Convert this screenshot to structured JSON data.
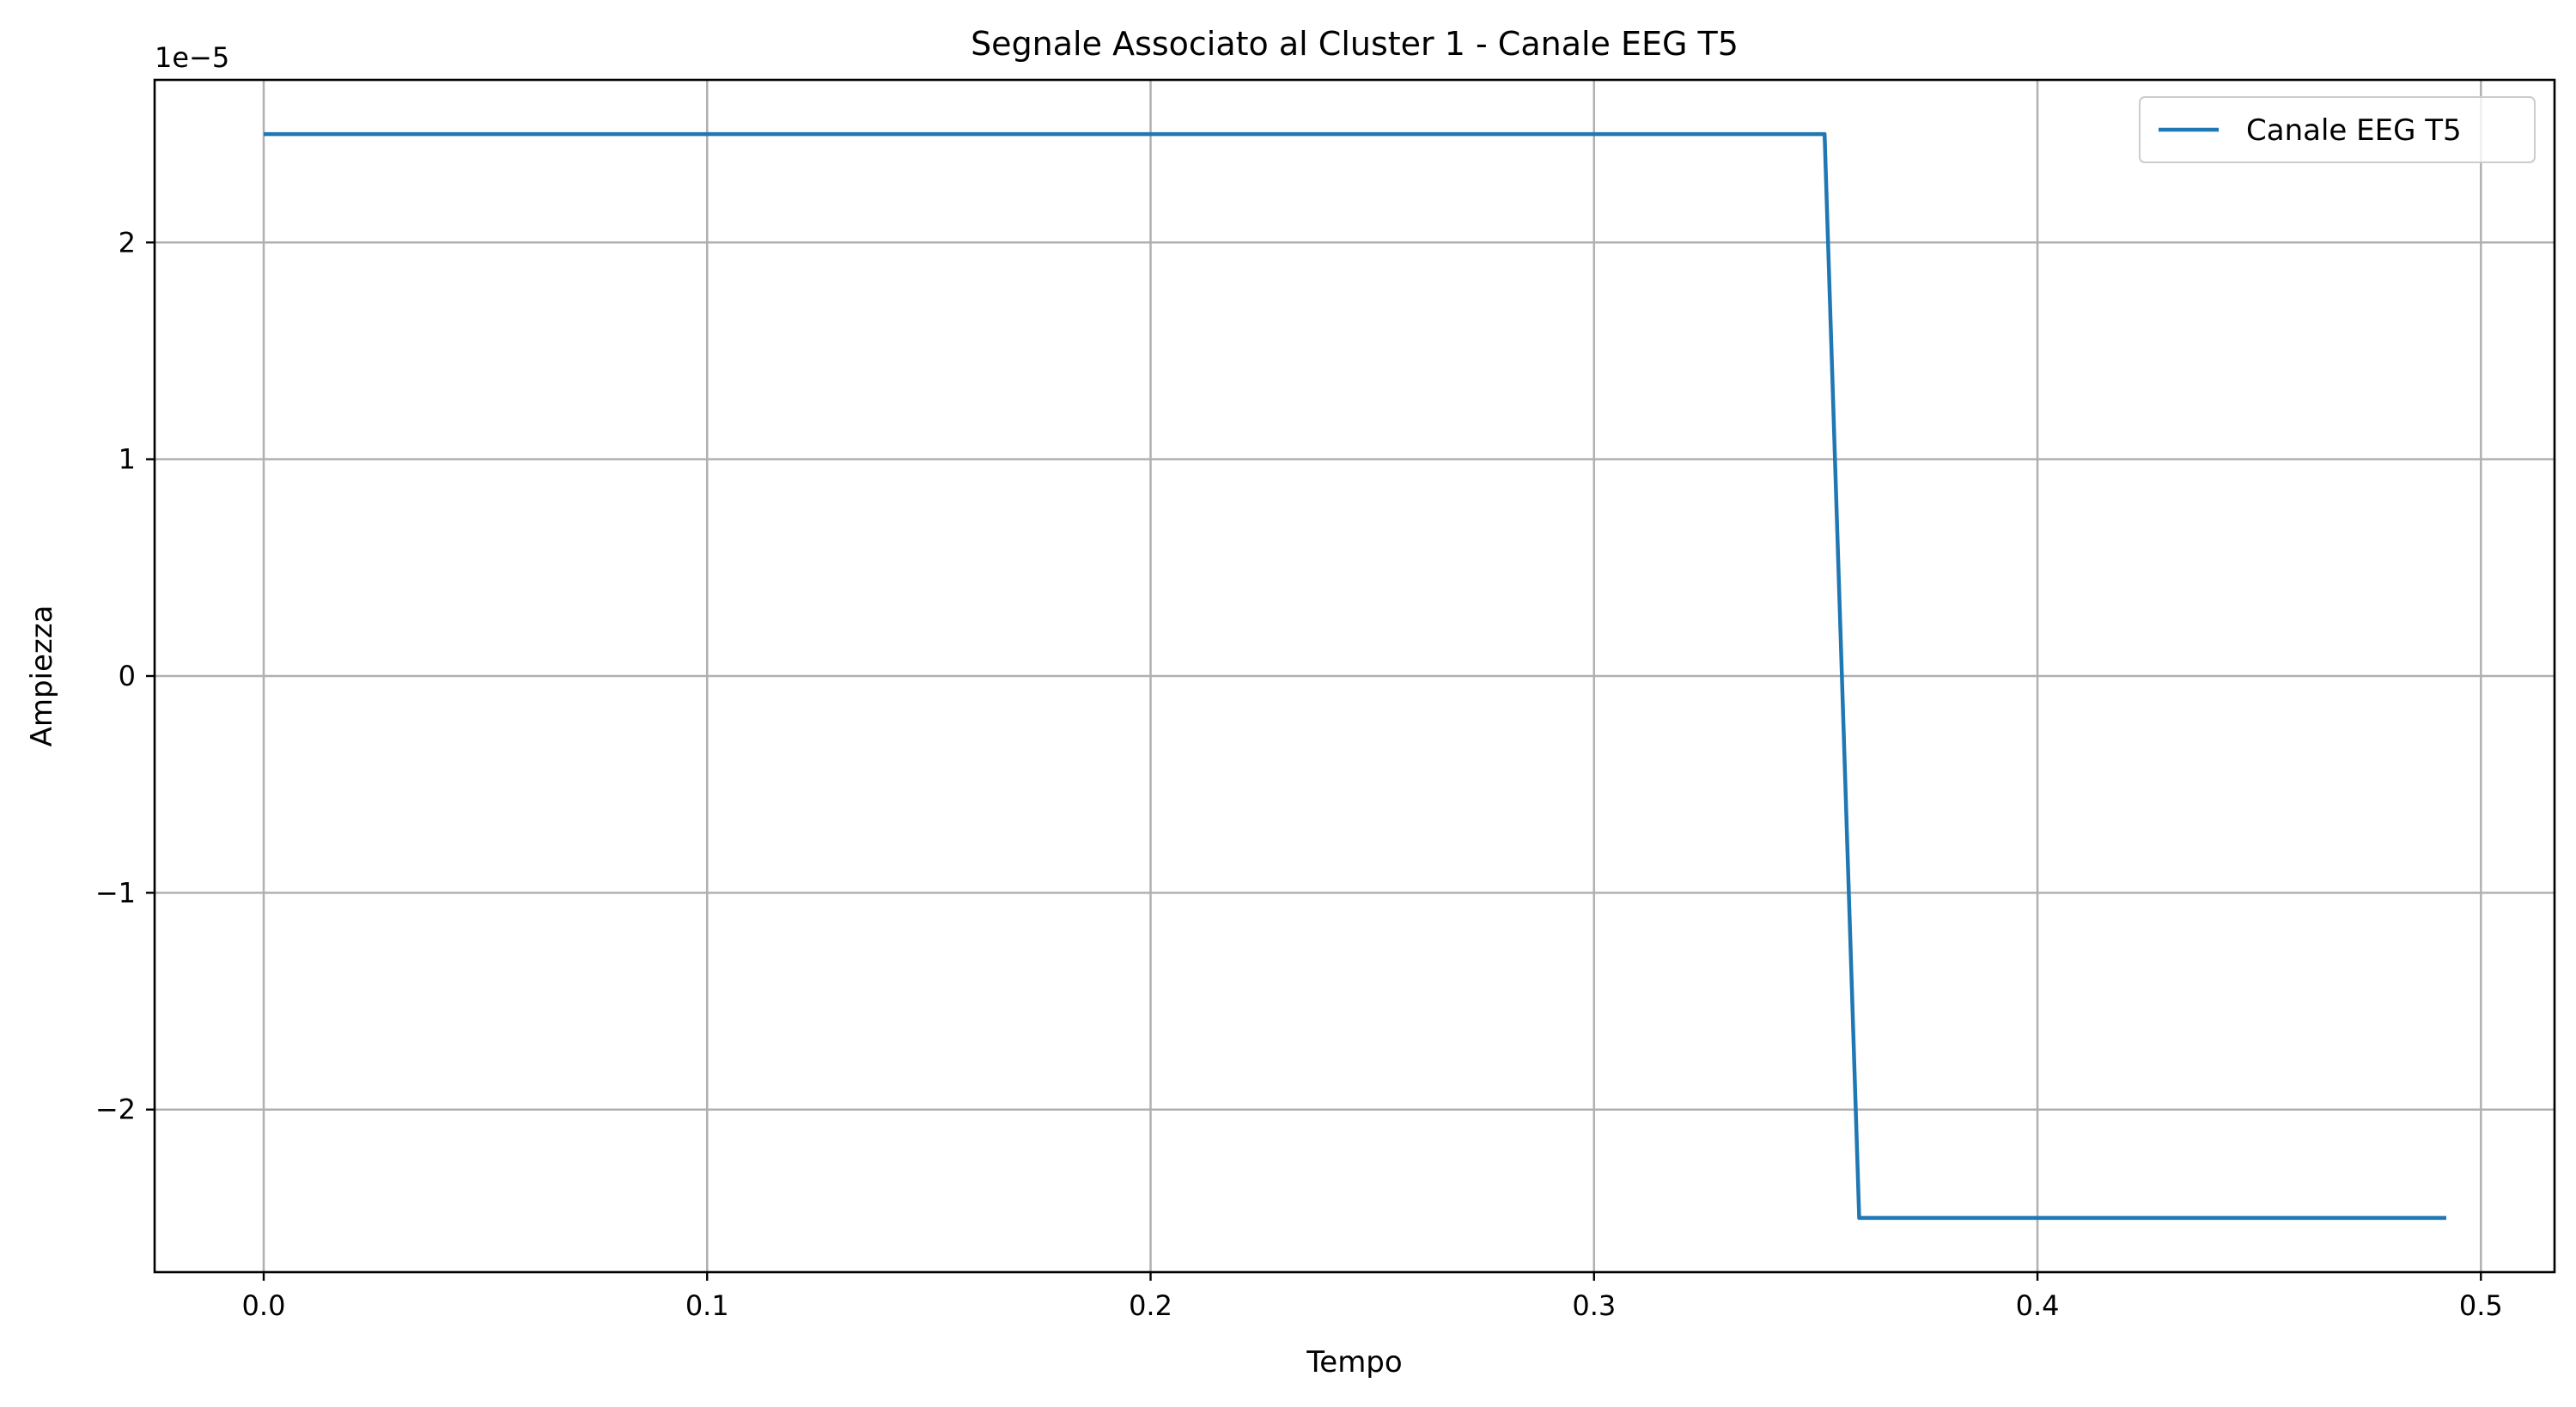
{
  "chart_data": {
    "type": "line",
    "title": "Segnale Associato al Cluster 1 - Canale EEG T5",
    "xlabel": "Tempo",
    "ylabel": "Ampiezza",
    "y_offset_label": "1e−5",
    "xlim": [
      -0.0246,
      0.5166
    ],
    "ylim": [
      -2.75,
      2.75
    ],
    "y_scale_factor": 1e-05,
    "x_ticks": [
      0.0,
      0.1,
      0.2,
      0.3,
      0.4,
      0.5
    ],
    "x_tick_labels": [
      "0.0",
      "0.1",
      "0.2",
      "0.3",
      "0.4",
      "0.5"
    ],
    "y_ticks": [
      -2,
      -1,
      0,
      1,
      2
    ],
    "y_tick_labels": [
      "−2",
      "−1",
      "0",
      "1",
      "2"
    ],
    "grid": true,
    "legend_position": "upper right",
    "series": [
      {
        "name": "Canale EEG T5",
        "color": "#1f77b4",
        "x": [
          0.0,
          0.352,
          0.3598,
          0.4922
        ],
        "y": [
          2.5,
          2.5,
          -2.5,
          -2.5
        ]
      }
    ]
  }
}
